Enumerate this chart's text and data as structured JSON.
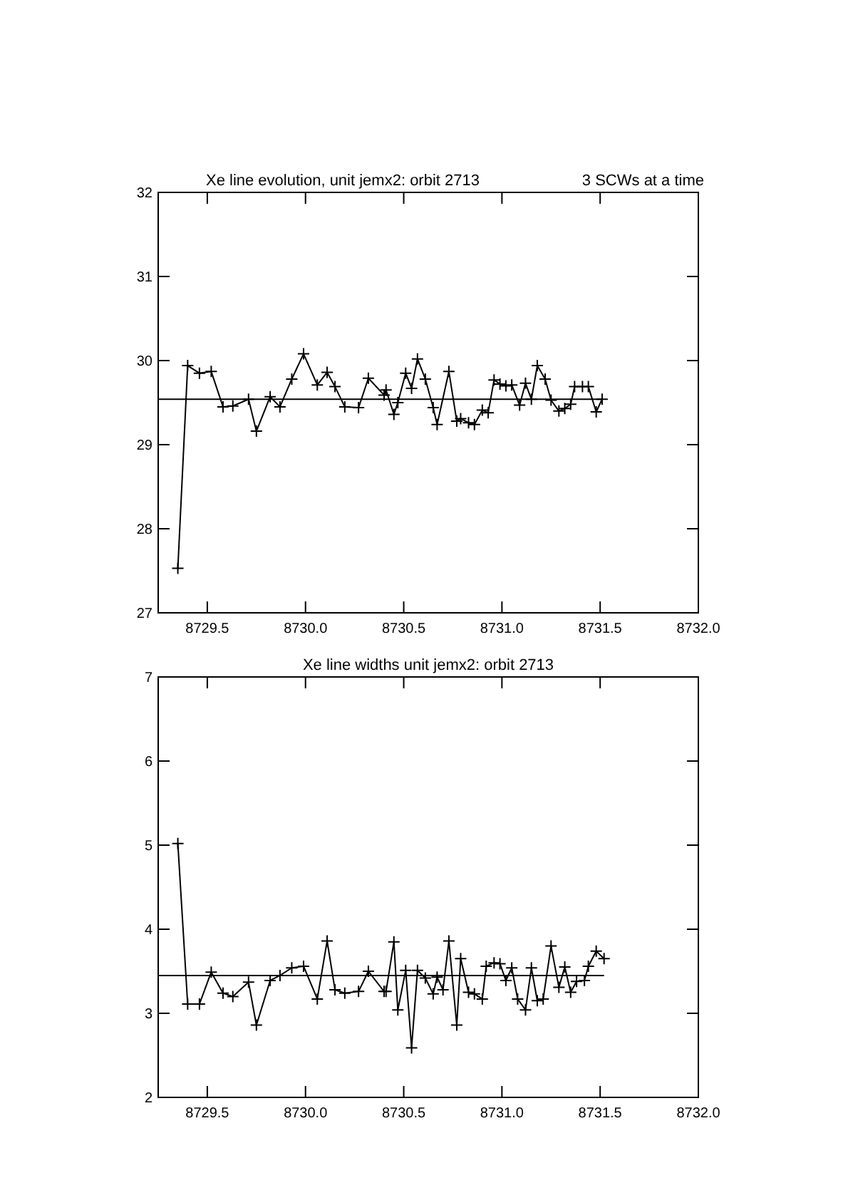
{
  "chart_data": [
    {
      "type": "line",
      "title": "Xe line evolution, unit jemx2: orbit 2713",
      "annotations": [
        "3 SCWs at a time"
      ],
      "marker": "cross",
      "line_style": "solid",
      "grid": false,
      "xlim": [
        8729.25,
        8732.0
      ],
      "xticks": [
        8729.5,
        {
          "value": 8730,
          "label": "8730.0"
        },
        8730.5,
        {
          "value": 8731,
          "label": "8731.0"
        },
        8731.5,
        {
          "value": 8732,
          "label": "8732.0"
        }
      ],
      "ylim": [
        27,
        32
      ],
      "yticks": [
        27,
        28,
        29,
        30,
        31,
        32
      ],
      "ref_lines": [
        {
          "axis": "y",
          "value": 29.54,
          "color": "#000000"
        }
      ],
      "series": [
        {
          "color": "#000000",
          "x": [
            8729.35,
            8729.4,
            8729.46,
            8729.52,
            8729.58,
            8729.63,
            8729.71,
            8729.75,
            8729.82,
            8729.87,
            8729.93,
            8729.99,
            8730.06,
            8730.11,
            8730.15,
            8730.2,
            8730.27,
            8730.32,
            8730.4,
            8730.41,
            8730.45,
            8730.47,
            8730.51,
            8730.54,
            8730.57,
            8730.61,
            8730.65,
            8730.67,
            8730.73,
            8730.77,
            8730.79,
            8730.83,
            8730.86,
            8730.9,
            8730.93,
            8730.96,
            8730.99,
            8731.02,
            8731.05,
            8731.09,
            8731.12,
            8731.15,
            8731.18,
            8731.22,
            8731.25,
            8731.29,
            8731.32,
            8731.35,
            8731.37,
            8731.41,
            8731.44,
            8731.48,
            8731.51
          ],
          "values": [
            27.53,
            29.94,
            29.85,
            29.87,
            29.45,
            29.46,
            29.54,
            29.16,
            29.57,
            29.45,
            29.78,
            30.08,
            29.71,
            29.86,
            29.69,
            29.45,
            29.44,
            29.79,
            29.59,
            29.65,
            29.36,
            29.5,
            29.85,
            29.67,
            30.02,
            29.78,
            29.44,
            29.24,
            29.87,
            29.28,
            29.31,
            29.26,
            29.24,
            29.41,
            29.38,
            29.77,
            29.72,
            29.7,
            29.71,
            29.47,
            29.73,
            29.54,
            29.94,
            29.78,
            29.53,
            29.4,
            29.43,
            29.48,
            29.69,
            29.69,
            29.69,
            29.39,
            29.54
          ]
        }
      ]
    },
    {
      "type": "line",
      "title": "Xe line widths unit jemx2: orbit 2713",
      "marker": "cross",
      "line_style": "solid",
      "grid": false,
      "xlim": [
        8729.25,
        8732.0
      ],
      "xticks": [
        8729.5,
        {
          "value": 8730,
          "label": "8730.0"
        },
        8730.5,
        {
          "value": 8731,
          "label": "8731.0"
        },
        8731.5,
        {
          "value": 8732,
          "label": "8732.0"
        }
      ],
      "ylim": [
        2,
        7
      ],
      "yticks": [
        2,
        3,
        4,
        5,
        6,
        7
      ],
      "ref_lines": [
        {
          "axis": "y",
          "value": 3.45,
          "color": "#000000"
        }
      ],
      "series": [
        {
          "color": "#000000",
          "x": [
            8729.35,
            8729.4,
            8729.46,
            8729.52,
            8729.58,
            8729.63,
            8729.71,
            8729.75,
            8729.82,
            8729.87,
            8729.93,
            8729.99,
            8730.06,
            8730.11,
            8730.15,
            8730.2,
            8730.27,
            8730.32,
            8730.4,
            8730.41,
            8730.45,
            8730.47,
            8730.51,
            8730.54,
            8730.57,
            8730.61,
            8730.65,
            8730.67,
            8730.7,
            8730.73,
            8730.77,
            8730.79,
            8730.83,
            8730.86,
            8730.9,
            8730.92,
            8730.96,
            8730.99,
            8731.02,
            8731.05,
            8731.08,
            8731.12,
            8731.15,
            8731.18,
            8731.21,
            8731.25,
            8731.29,
            8731.32,
            8731.35,
            8731.38,
            8731.42,
            8731.44,
            8731.48,
            8731.52
          ],
          "values": [
            5.02,
            3.11,
            3.11,
            3.49,
            3.24,
            3.2,
            3.37,
            2.86,
            3.39,
            3.45,
            3.54,
            3.56,
            3.17,
            3.86,
            3.28,
            3.24,
            3.26,
            3.5,
            3.26,
            3.26,
            3.85,
            3.04,
            3.51,
            2.59,
            3.51,
            3.42,
            3.23,
            3.43,
            3.28,
            3.86,
            2.86,
            3.65,
            3.25,
            3.23,
            3.17,
            3.56,
            3.6,
            3.59,
            3.39,
            3.54,
            3.17,
            3.04,
            3.54,
            3.15,
            3.17,
            3.8,
            3.31,
            3.55,
            3.25,
            3.38,
            3.39,
            3.56,
            3.74,
            3.65
          ]
        }
      ]
    }
  ]
}
